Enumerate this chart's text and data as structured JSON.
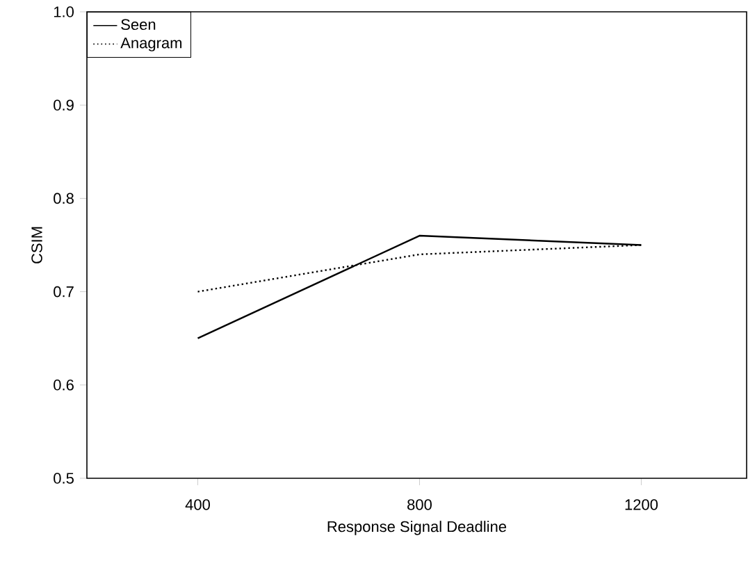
{
  "chart_data": {
    "type": "line",
    "xlabel": "Response Signal Deadline",
    "ylabel": "CSIM",
    "x": [
      400,
      800,
      1200
    ],
    "series": [
      {
        "name": "Seen",
        "color": "#000000",
        "line_style": "solid",
        "values": [
          0.65,
          0.76,
          0.75
        ]
      },
      {
        "name": "Anagram",
        "color": "#000000",
        "line_style": "dotted",
        "values": [
          0.7,
          0.74,
          0.75
        ]
      }
    ],
    "xlim": [
      200,
      1390
    ],
    "ylim": [
      0.5,
      1.0
    ],
    "xticks": [
      400,
      800,
      1200
    ],
    "yticks": [
      0.5,
      0.6,
      0.7,
      0.8,
      0.9,
      {
        "value": 1,
        "label": "1.0"
      }
    ],
    "legend": "top left",
    "grid": false,
    "marker": "none"
  }
}
